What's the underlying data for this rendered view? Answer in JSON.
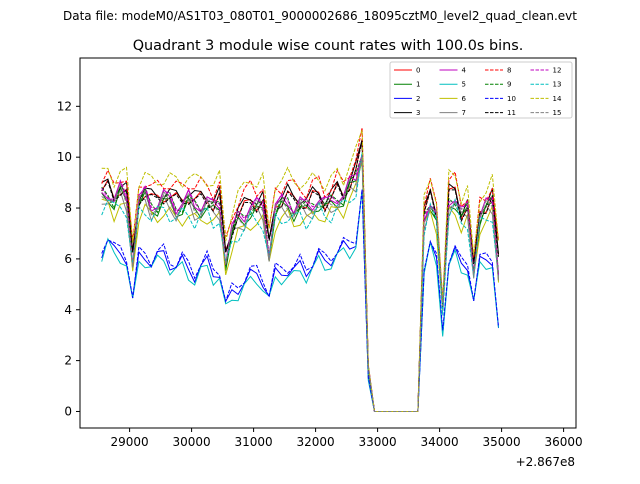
{
  "suptitle": "Data file: modeM0/AS1T03_080T01_9000002686_18095cztM0_level2_quad_clean.evt",
  "chart_data": {
    "type": "line",
    "title": "Quadrant 3 module wise count rates with 100.0s bins.",
    "xlabel": "",
    "ylabel": "",
    "offset_label": "+2.867e8",
    "xlim": [
      28200,
      36200
    ],
    "ylim": [
      -0.65,
      13.9
    ],
    "xticks": [
      29000,
      30000,
      31000,
      32000,
      33000,
      34000,
      35000,
      36000
    ],
    "xtick_labels": [
      "29000",
      "30000",
      "31000",
      "32000",
      "33000",
      "34000",
      "35000",
      "36000"
    ],
    "yticks": [
      0,
      2,
      4,
      6,
      8,
      10,
      12
    ],
    "ytick_labels": [
      "0",
      "2",
      "4",
      "6",
      "8",
      "10",
      "12"
    ],
    "x_start": 28550,
    "x_step": 100,
    "legend": {
      "position": "top-right",
      "columns": 4
    },
    "series_style": [
      {
        "name": "0",
        "color": "#ff0000",
        "dash": "solid"
      },
      {
        "name": "1",
        "color": "#008000",
        "dash": "solid"
      },
      {
        "name": "2",
        "color": "#0000ff",
        "dash": "solid"
      },
      {
        "name": "3",
        "color": "#000000",
        "dash": "solid"
      },
      {
        "name": "4",
        "color": "#bf00bf",
        "dash": "solid"
      },
      {
        "name": "5",
        "color": "#00bfbf",
        "dash": "solid"
      },
      {
        "name": "6",
        "color": "#bfbf00",
        "dash": "solid"
      },
      {
        "name": "7",
        "color": "#808080",
        "dash": "solid"
      },
      {
        "name": "8",
        "color": "#ff0000",
        "dash": "dashed"
      },
      {
        "name": "9",
        "color": "#008000",
        "dash": "dashed"
      },
      {
        "name": "10",
        "color": "#0000ff",
        "dash": "dashed"
      },
      {
        "name": "11",
        "color": "#000000",
        "dash": "dashed"
      },
      {
        "name": "12",
        "color": "#bf00bf",
        "dash": "dashed"
      },
      {
        "name": "13",
        "color": "#00bfbf",
        "dash": "dashed"
      },
      {
        "name": "14",
        "color": "#bfbf00",
        "dash": "dashed"
      },
      {
        "name": "15",
        "color": "#808080",
        "dash": "dashed"
      }
    ],
    "envelopes": {
      "high": [
        8.8,
        8.9,
        8.6,
        9.0,
        8.7,
        6.2,
        8.6,
        8.8,
        8.4,
        8.5,
        8.7,
        8.6,
        8.4,
        8.5,
        8.7,
        8.4,
        8.5,
        8.6,
        8.3,
        8.5,
        6.3,
        7.4,
        7.9,
        8.1,
        8.5,
        8.4,
        8.4,
        6.6,
        8.4,
        8.5,
        8.6,
        8.4,
        8.5,
        8.3,
        8.5,
        8.7,
        8.4,
        8.5,
        8.8,
        8.7,
        9.2,
        9.5,
        10.6,
        1.8,
        0.0,
        0.0,
        0.0,
        0.0,
        0.0,
        0.0,
        0.0,
        0.0,
        7.8,
        8.6,
        8.0,
        4.2,
        8.6,
        8.8,
        8.0,
        8.2,
        5.7,
        8.0,
        8.3,
        8.5,
        6.0
      ],
      "low": [
        6.2,
        6.6,
        6.0,
        6.1,
        5.9,
        4.2,
        5.8,
        6.0,
        5.7,
        5.8,
        6.0,
        5.7,
        5.5,
        5.6,
        5.4,
        5.2,
        5.4,
        5.6,
        5.3,
        5.3,
        3.9,
        4.4,
        4.7,
        4.9,
        5.0,
        5.2,
        5.0,
        4.3,
        5.1,
        5.3,
        5.4,
        5.2,
        5.5,
        5.4,
        5.6,
        5.8,
        5.7,
        5.9,
        6.0,
        6.2,
        6.3,
        6.6,
        8.4,
        1.2,
        0.0,
        0.0,
        0.0,
        0.0,
        0.0,
        0.0,
        0.0,
        0.0,
        5.6,
        6.4,
        5.6,
        3.1,
        5.8,
        6.0,
        5.5,
        5.7,
        4.3,
        5.6,
        5.8,
        5.9,
        3.0
      ]
    },
    "series_profile": [
      0.95,
      0.82,
      0.07,
      1.0,
      0.9,
      0.0,
      0.7,
      0.8,
      1.12,
      0.88,
      0.12,
      0.93,
      0.91,
      0.72,
      1.2,
      0.86
    ]
  }
}
